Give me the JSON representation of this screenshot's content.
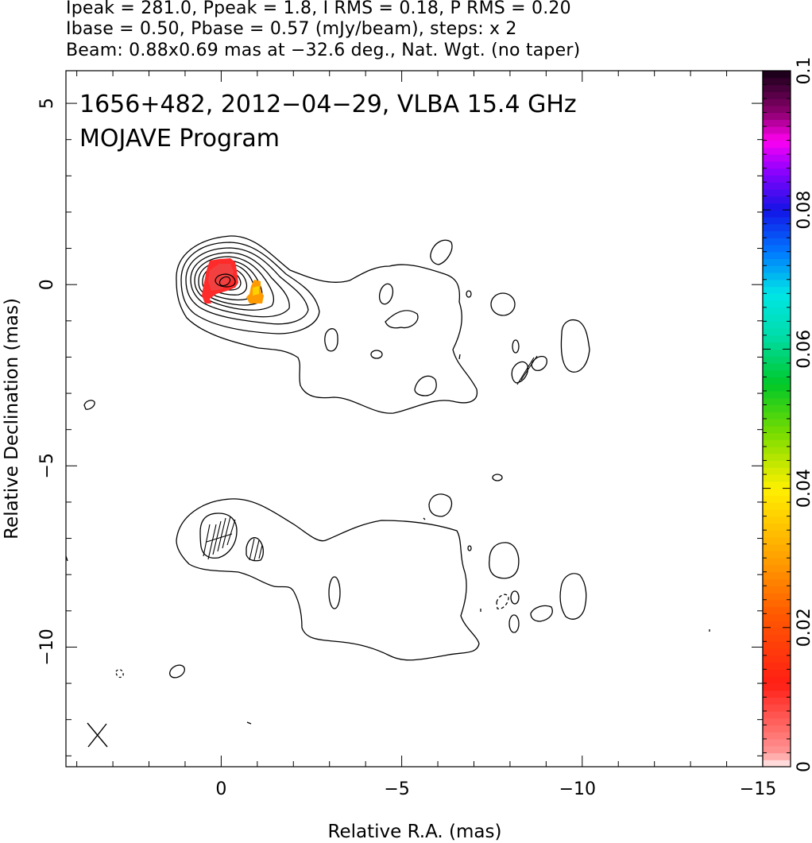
{
  "header": {
    "line1": "Ipeak = 281.0, Ppeak = 1.8, I RMS = 0.18, P RMS = 0.20",
    "line2": "Ibase = 0.50, Pbase = 0.57 (mJy/beam), steps: x 2",
    "line3": "Beam: 0.88x0.69 mas at −32.6 deg., Nat. Wgt. (no taper)"
  },
  "chart_data": {
    "type": "contour",
    "source": "1656+482",
    "date": "2012-04-29",
    "annotation_line1": "1656+482, 2012−04−29, VLBA 15.4 GHz",
    "annotation_line2": "MOJAVE Program",
    "xlabel": "Relative R.A. (mas)",
    "ylabel": "Relative Declination (mas)",
    "xlim": [
      4.3,
      -15
    ],
    "ylim": [
      -13.3,
      5.9
    ],
    "x_ticks": [
      0,
      -5,
      -10,
      -15
    ],
    "x_tick_labels": [
      "0",
      "−5",
      "−10",
      "−15"
    ],
    "y_ticks": [
      5,
      0,
      -5,
      -10
    ],
    "y_tick_labels": [
      "5",
      "0",
      "−5",
      "−10"
    ],
    "colorbar": {
      "range": [
        0,
        0.1
      ],
      "ticks": [
        0,
        0.02,
        0.04,
        0.06,
        0.08,
        0.1
      ],
      "tick_labels": [
        "0",
        "0.02",
        "0.04",
        "0.06",
        "0.08",
        "0.1"
      ]
    },
    "core_position": [
      0,
      0
    ],
    "contour_levels_mJy": [
      0.5,
      1,
      2,
      4,
      8,
      16,
      32,
      64,
      128,
      256
    ],
    "polarization_patches": [
      {
        "x": 0.2,
        "y": -0.1,
        "value": 0.012
      },
      {
        "x": -0.95,
        "y": -0.3,
        "value": 0.028
      }
    ],
    "beam": {
      "major_mas": 0.88,
      "minor_mas": 0.69,
      "pa_deg": -32.6
    }
  }
}
